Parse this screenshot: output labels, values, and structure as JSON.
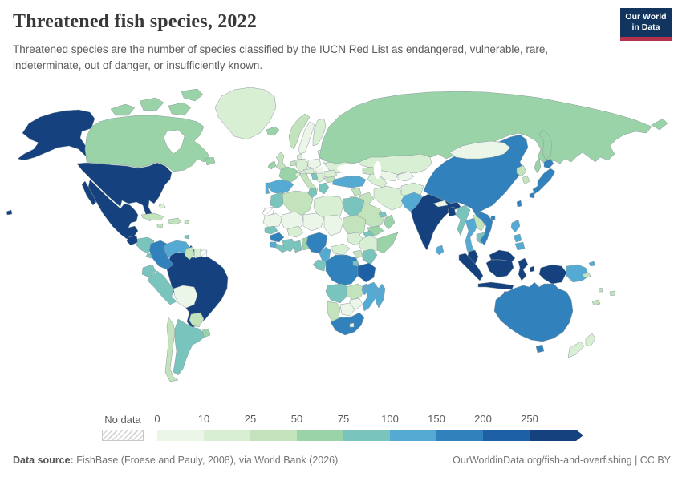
{
  "header": {
    "title": "Threatened fish species, 2022",
    "subtitle": "Threatened species are the number of species classified by the IUCN Red List as endangered, vulnerable, rare, indeterminate, out of danger, or insufficiently known.",
    "logo": {
      "line1": "Our World",
      "line2": "in Data",
      "bg_color": "#12355f",
      "accent_color": "#b5304a"
    }
  },
  "legend": {
    "no_data_label": "No data",
    "ticks": [
      "0",
      "10",
      "25",
      "50",
      "75",
      "100",
      "150",
      "200",
      "250"
    ]
  },
  "footer": {
    "source_label": "Data source:",
    "source_text": " FishBase (Froese and Pauly, 2008), via World Bank (2026)",
    "right_text": "OurWorldinData.org/fish-and-overfishing | CC BY"
  },
  "chart_data": {
    "type": "heatmap",
    "subtype": "choropleth-world-map",
    "title": "Threatened fish species, 2022",
    "value_label": "Number of threatened fish species classified by the IUCN Red List",
    "year": "2022",
    "bin_edges": [
      0,
      10,
      25,
      50,
      75,
      100,
      150,
      200,
      250
    ],
    "bin_labels": [
      "0-10",
      "10-25",
      "25-50",
      "50-75",
      "75-100",
      "100-150",
      "150-200",
      "200-250",
      "250+"
    ],
    "bin_colors": [
      "#ecf6e8",
      "#d9efd3",
      "#c2e3bb",
      "#9ad3a7",
      "#79c4bc",
      "#55aad3",
      "#3181bd",
      "#1d60a6",
      "#15427e"
    ],
    "no_data_color_style": "white-with-gray-hatching",
    "country_bins": {
      "united-states": 8,
      "canada": 3,
      "greenland": 1,
      "mexico": 8,
      "guatemala": 8,
      "honduras-nicaragua": 4,
      "costa-rica-panama": 4,
      "cuba": 2,
      "jamaica": 2,
      "hispaniola": 2,
      "puerto-rico": 2,
      "bahamas": 1,
      "trinidad-and-tobago": 4,
      "colombia": 6,
      "venezuela": 5,
      "guyana": 2,
      "suriname": 1,
      "french-guiana": "no_data",
      "ecuador": 4,
      "peru": 4,
      "bolivia": 0,
      "brazil": 8,
      "paraguay": 2,
      "uruguay": 3,
      "argentina": 4,
      "chile": 2,
      "iceland": 3,
      "norway": 2,
      "sweden": 0,
      "finland": 1,
      "denmark": 1,
      "united-kingdom": 2,
      "ireland": 3,
      "benelux": 2,
      "germany": 1,
      "france": 3,
      "switzerland": 1,
      "austria-czechia": 1,
      "poland": 0,
      "baltics": 1,
      "belarus": 0,
      "ukraine": 1,
      "romania": 1,
      "hungary-slovakia": 0,
      "serbia-bosnia": 1,
      "croatia": 4,
      "greece": 4,
      "bulgaria": 2,
      "italy": 2,
      "spain": 5,
      "portugal": 5,
      "russia": 3,
      "kazakhstan": 1,
      "uzbekistan": 0,
      "turkmenistan": 1,
      "kyrgyzstan-tajikistan": 0,
      "caucasus": 2,
      "turkey": 5,
      "syria": 2,
      "iraq": 2,
      "jordan-israel": 2,
      "iran": 1,
      "afghanistan": 1,
      "saudi-arabia": 2,
      "yemen": 3,
      "oman": 3,
      "uae": 4,
      "morocco": 4,
      "western-sahara": "no_data",
      "algeria": 2,
      "tunisia": 4,
      "libya": 1,
      "egypt": 4,
      "mauritania": 0,
      "mali": 0,
      "niger": 0,
      "chad": 0,
      "sudan": 2,
      "eritrea": 4,
      "ethiopia": 1,
      "somalia": 3,
      "senegal": 4,
      "guinea": 6,
      "sierra-leone": 5,
      "liberia": 4,
      "ivory-coast": 4,
      "burkina-faso": 1,
      "ghana": 4,
      "togo-benin": 3,
      "nigeria": 6,
      "cameroon": 5,
      "central-african-republic": 1,
      "south-sudan": 1,
      "drc": 6,
      "uganda": 2,
      "kenya": 4,
      "rwanda-burundi": 4,
      "congo-gabon": 4,
      "tanzania": 7,
      "angola": 4,
      "zambia": 2,
      "malawi": 5,
      "mozambique": 5,
      "zimbabwe": 0,
      "botswana": 0,
      "namibia": 2,
      "south-africa": 6,
      "lesotho": 0,
      "madagascar": 5,
      "pakistan": 5,
      "india": 8,
      "nepal": 0,
      "bangladesh": 8,
      "sri-lanka": 5,
      "myanmar": 4,
      "thailand": 5,
      "laos": 2,
      "cambodia": 4,
      "vietnam": 6,
      "china": 6,
      "taiwan": 6,
      "mongolia": 0,
      "north-korea": 2,
      "south-korea": 2,
      "japan": 6,
      "philippines": 5,
      "malaysia": 8,
      "indonesia": 8,
      "timor": 2,
      "papua-new-guinea": 5,
      "australia": 6,
      "new-zealand": 1,
      "fiji": 2,
      "new-caledonia": 2,
      "vanuatu": 2,
      "solomon-islands": 2
    }
  }
}
